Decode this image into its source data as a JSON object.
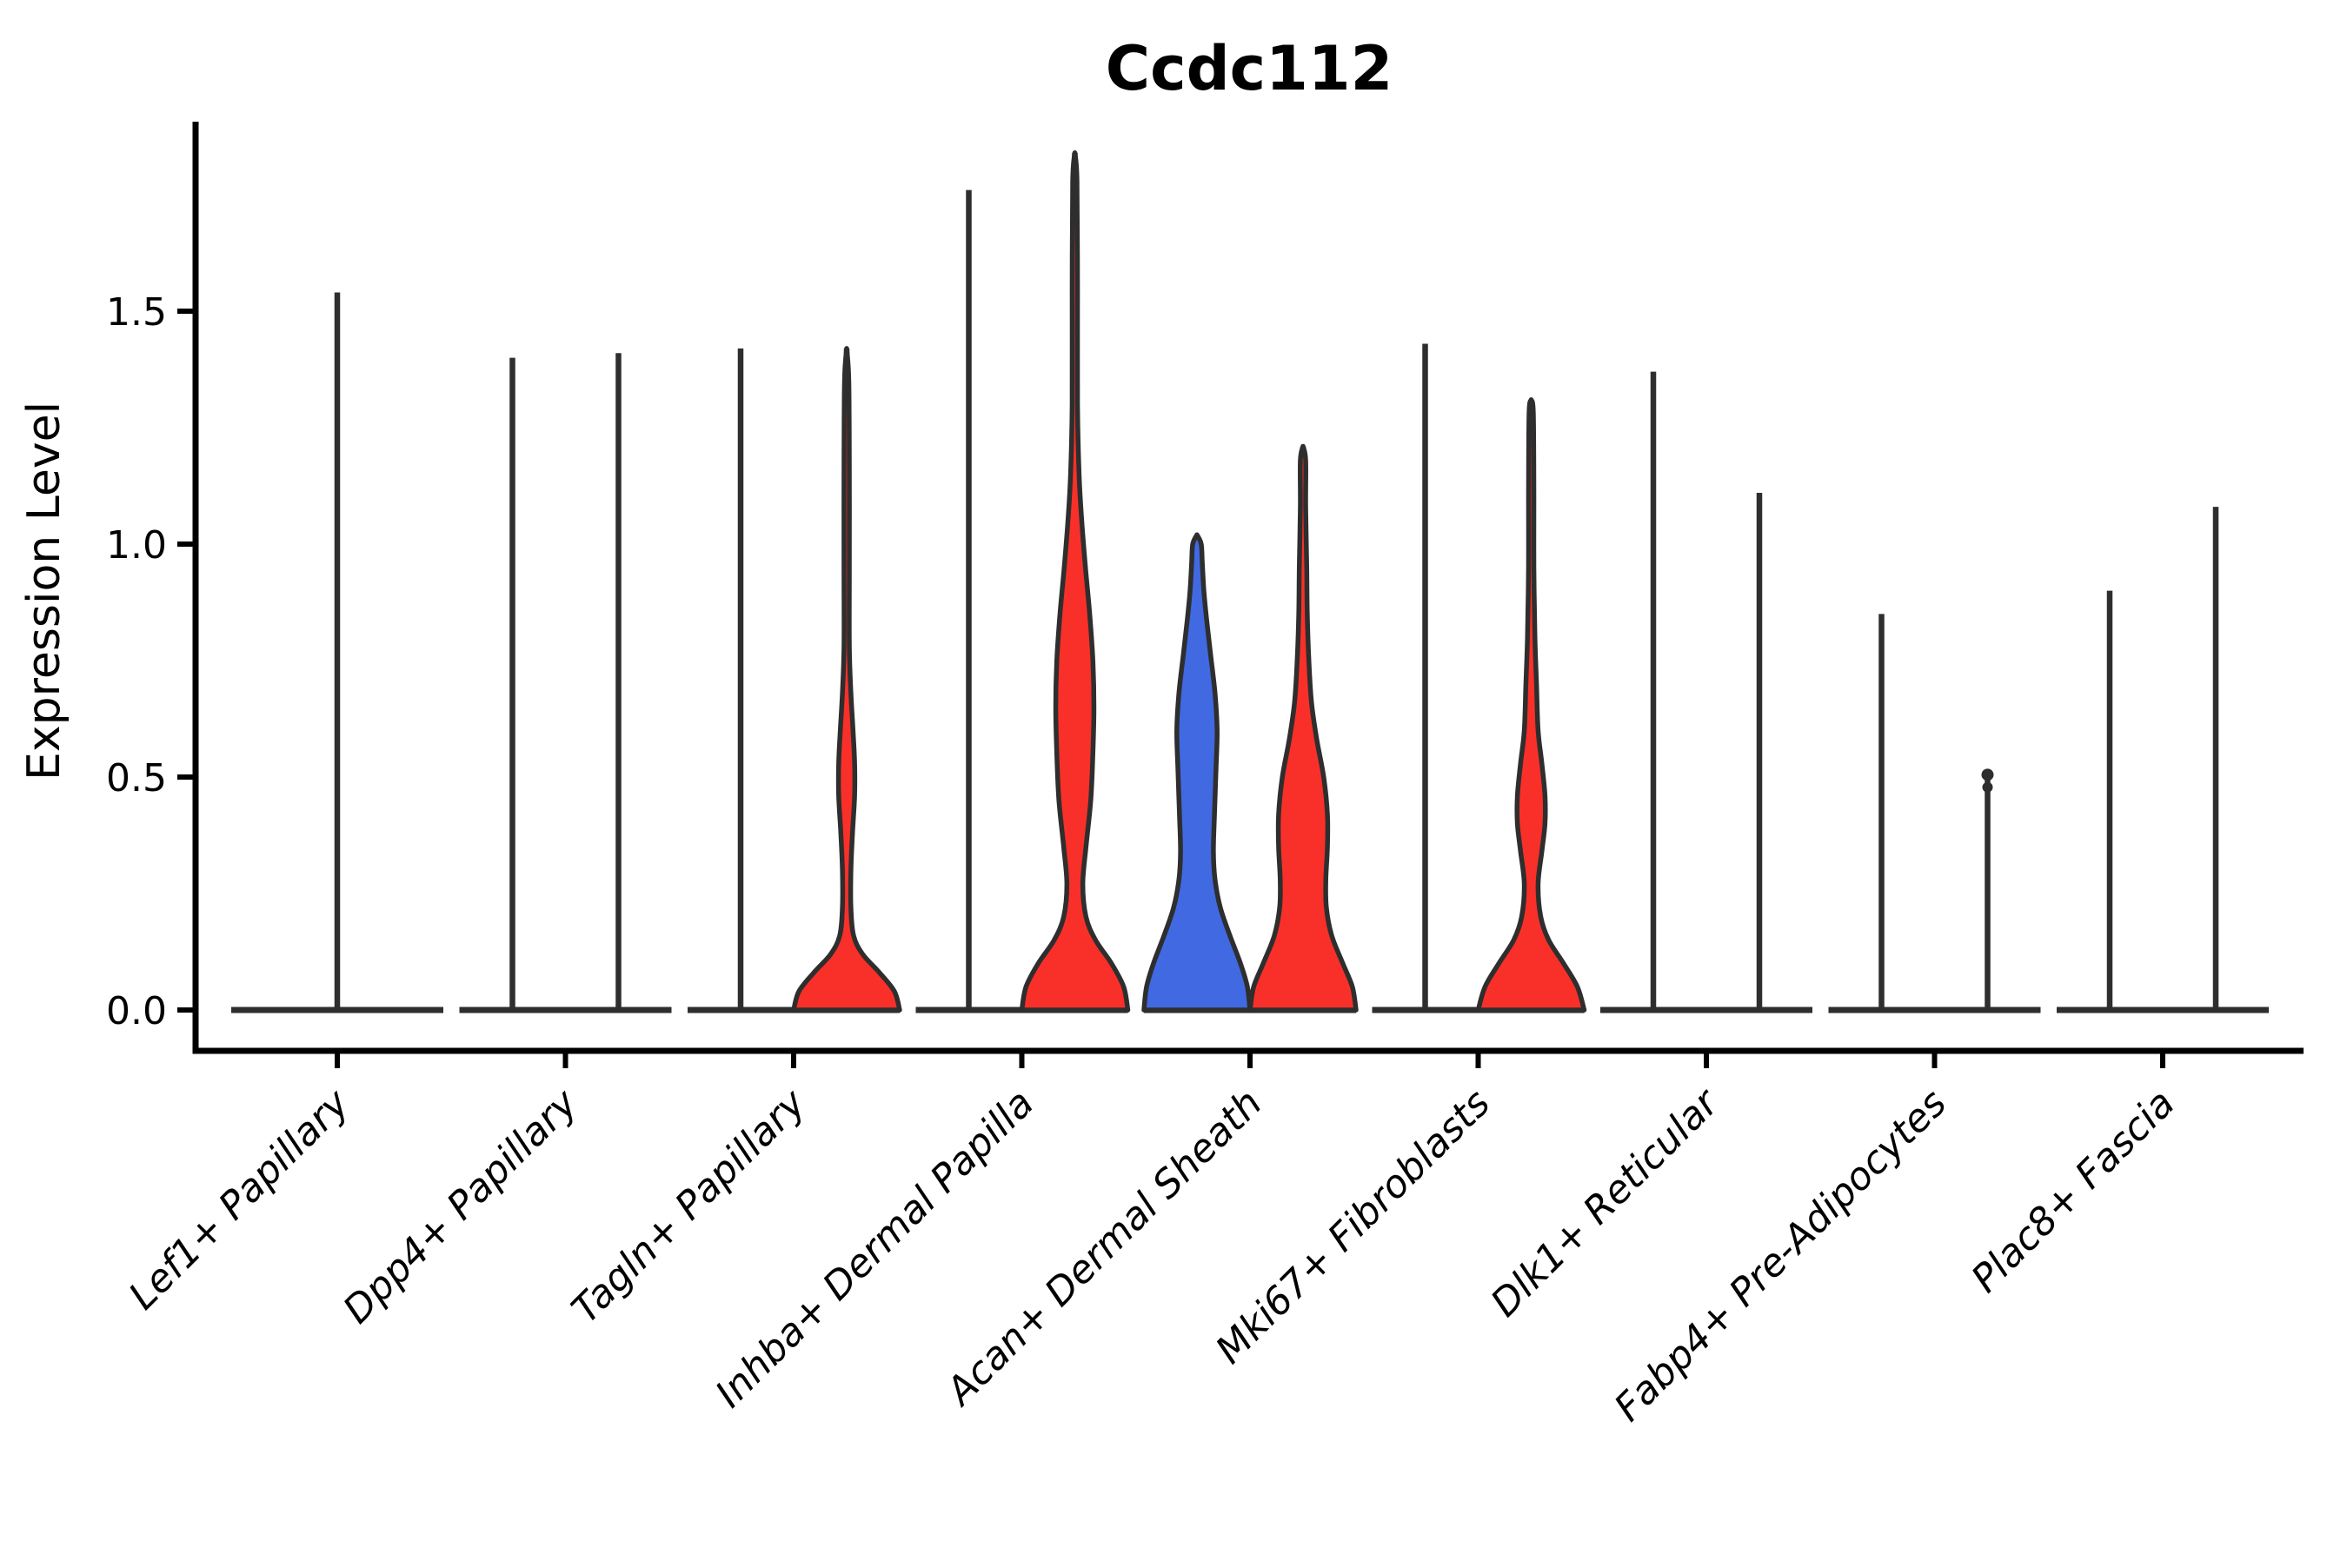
{
  "chart_data": {
    "type": "violin",
    "title": "Ccdc112",
    "ylabel": "Expression Level",
    "xlabel": "",
    "ylim": [
      0,
      1.9
    ],
    "grid": false,
    "legend": "none",
    "y_ticks": [
      {
        "label": "0.0",
        "value": 0.0
      },
      {
        "label": "0.5",
        "value": 0.5
      },
      {
        "label": "1.0",
        "value": 1.0
      },
      {
        "label": "1.5",
        "value": 1.5
      }
    ],
    "categories": [
      "Lef1+ Papillary",
      "Dpp4+ Papillary",
      "Tagln+ Papillary",
      "Inhba+ Dermal Papilla",
      "Acan+ Dermal Sheath",
      "Mki67+ Fibroblasts",
      "Dlk1+ Reticular",
      "Fabp4+ Pre-Adipocytes",
      "Plac8+ Fascia"
    ],
    "colors": {
      "red": "#f93029",
      "blue": "#4169e1",
      "outline": "#2e2e2e",
      "axis": "#000000"
    },
    "series": [
      {
        "category": "Lef1+ Papillary",
        "violins": [
          {
            "pos": "single",
            "width": 2,
            "max": 1.54,
            "shape": "spike",
            "fill": null
          }
        ]
      },
      {
        "category": "Dpp4+ Papillary",
        "violins": [
          {
            "pos": "left",
            "width": 1,
            "max": 1.4,
            "shape": "spike",
            "fill": null
          },
          {
            "pos": "right",
            "width": 1,
            "max": 1.41,
            "shape": "spike",
            "fill": null
          }
        ]
      },
      {
        "category": "Tagln+ Papillary",
        "violins": [
          {
            "pos": "left",
            "width": 1,
            "max": 1.42,
            "shape": "spike",
            "fill": null
          },
          {
            "pos": "right",
            "width": 1,
            "max": 1.42,
            "shape": "violin",
            "fill": "red",
            "profile": [
              [
                0,
                1.0
              ],
              [
                0.04,
                0.9
              ],
              [
                0.08,
                0.62
              ],
              [
                0.12,
                0.3
              ],
              [
                0.16,
                0.13
              ],
              [
                0.22,
                0.08
              ],
              [
                0.3,
                0.08
              ],
              [
                0.38,
                0.11
              ],
              [
                0.46,
                0.15
              ],
              [
                0.53,
                0.15
              ],
              [
                0.6,
                0.12
              ],
              [
                0.68,
                0.08
              ],
              [
                0.78,
                0.05
              ],
              [
                0.95,
                0.05
              ],
              [
                1.15,
                0.05
              ],
              [
                1.35,
                0.04
              ],
              [
                1.42,
                0
              ]
            ]
          }
        ]
      },
      {
        "category": "Inhba+ Dermal Papilla",
        "violins": [
          {
            "pos": "left",
            "width": 1,
            "max": 1.76,
            "shape": "spike",
            "fill": null
          },
          {
            "pos": "right",
            "width": 1,
            "max": 1.84,
            "shape": "violin",
            "fill": "red",
            "profile": [
              [
                0,
                1.0
              ],
              [
                0.05,
                0.92
              ],
              [
                0.1,
                0.69
              ],
              [
                0.15,
                0.39
              ],
              [
                0.2,
                0.21
              ],
              [
                0.27,
                0.15
              ],
              [
                0.35,
                0.21
              ],
              [
                0.45,
                0.3
              ],
              [
                0.55,
                0.34
              ],
              [
                0.65,
                0.36
              ],
              [
                0.75,
                0.34
              ],
              [
                0.85,
                0.28
              ],
              [
                0.95,
                0.2
              ],
              [
                1.05,
                0.13
              ],
              [
                1.15,
                0.08
              ],
              [
                1.3,
                0.05
              ],
              [
                1.55,
                0.05
              ],
              [
                1.78,
                0.04
              ],
              [
                1.84,
                0
              ]
            ]
          }
        ]
      },
      {
        "category": "Acan+ Dermal Sheath",
        "violins": [
          {
            "pos": "left",
            "width": 1,
            "max": 1.02,
            "shape": "violin",
            "fill": "blue",
            "profile": [
              [
                0,
                1.0
              ],
              [
                0.05,
                0.95
              ],
              [
                0.1,
                0.82
              ],
              [
                0.16,
                0.62
              ],
              [
                0.22,
                0.44
              ],
              [
                0.28,
                0.34
              ],
              [
                0.34,
                0.31
              ],
              [
                0.42,
                0.33
              ],
              [
                0.52,
                0.36
              ],
              [
                0.6,
                0.38
              ],
              [
                0.68,
                0.34
              ],
              [
                0.76,
                0.26
              ],
              [
                0.84,
                0.18
              ],
              [
                0.9,
                0.13
              ],
              [
                0.96,
                0.1
              ],
              [
                1.0,
                0.08
              ],
              [
                1.02,
                0
              ]
            ]
          },
          {
            "pos": "right",
            "width": 1,
            "max": 1.21,
            "shape": "violin",
            "fill": "red",
            "profile": [
              [
                0,
                1.0
              ],
              [
                0.05,
                0.93
              ],
              [
                0.1,
                0.75
              ],
              [
                0.16,
                0.54
              ],
              [
                0.22,
                0.44
              ],
              [
                0.28,
                0.43
              ],
              [
                0.35,
                0.46
              ],
              [
                0.42,
                0.46
              ],
              [
                0.5,
                0.39
              ],
              [
                0.58,
                0.26
              ],
              [
                0.66,
                0.16
              ],
              [
                0.75,
                0.11
              ],
              [
                0.85,
                0.08
              ],
              [
                0.95,
                0.07
              ],
              [
                1.08,
                0.05
              ],
              [
                1.18,
                0.05
              ],
              [
                1.21,
                0
              ]
            ]
          }
        ]
      },
      {
        "category": "Mki67+ Fibroblasts",
        "violins": [
          {
            "pos": "left",
            "width": 1,
            "max": 1.43,
            "shape": "spike",
            "fill": null
          },
          {
            "pos": "right",
            "width": 1,
            "max": 1.31,
            "shape": "violin",
            "fill": "red",
            "profile": [
              [
                0,
                1.0
              ],
              [
                0.05,
                0.87
              ],
              [
                0.1,
                0.61
              ],
              [
                0.15,
                0.33
              ],
              [
                0.2,
                0.18
              ],
              [
                0.27,
                0.13
              ],
              [
                0.34,
                0.2
              ],
              [
                0.4,
                0.26
              ],
              [
                0.46,
                0.26
              ],
              [
                0.53,
                0.2
              ],
              [
                0.6,
                0.13
              ],
              [
                0.7,
                0.1
              ],
              [
                0.8,
                0.07
              ],
              [
                0.95,
                0.05
              ],
              [
                1.1,
                0.05
              ],
              [
                1.28,
                0.04
              ],
              [
                1.31,
                0
              ]
            ]
          }
        ]
      },
      {
        "category": "Dlk1+ Reticular",
        "violins": [
          {
            "pos": "left",
            "width": 1,
            "max": 1.37,
            "shape": "spike",
            "fill": null
          },
          {
            "pos": "right",
            "width": 1,
            "max": 1.11,
            "shape": "spike",
            "fill": null
          }
        ]
      },
      {
        "category": "Fabp4+ Pre-Adipocytes",
        "violins": [
          {
            "pos": "left",
            "width": 1,
            "max": 0.85,
            "shape": "spike",
            "fill": null
          },
          {
            "pos": "right",
            "width": 1,
            "max": 0.505,
            "shape": "spike",
            "fill": null,
            "knobs": [
              0.505,
              0.478
            ]
          }
        ]
      },
      {
        "category": "Plac8+ Fascia",
        "violins": [
          {
            "pos": "left",
            "width": 1,
            "max": 0.9,
            "shape": "spike",
            "fill": null
          },
          {
            "pos": "right",
            "width": 1,
            "max": 1.08,
            "shape": "spike",
            "fill": null
          }
        ]
      }
    ]
  }
}
